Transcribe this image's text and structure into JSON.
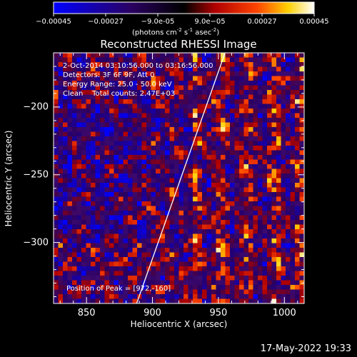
{
  "colorbar": {
    "ticks": [
      "-0.00045",
      "-0.00027",
      "-9.0e-05",
      "9.0e-05",
      "0.00027",
      "0.00045"
    ],
    "range": [
      -0.00045,
      0.00045
    ],
    "unit_prefix": "(photons cm",
    "unit_exp1": "-2",
    "unit_mid1": " s",
    "unit_exp2": "-1",
    "unit_mid2": " asec",
    "unit_exp3": "-2",
    "unit_suffix": ")",
    "colormap": "rhessi-blue-black-red-yellow-white"
  },
  "chart_data": {
    "type": "heatmap",
    "title": "Reconstructed RHESSI Image",
    "xlabel": "Heliocentric X (arcsec)",
    "ylabel": "Heliocentric Y (arcsec)",
    "xlim": [
      825,
      1015
    ],
    "ylim": [
      -345,
      -160
    ],
    "xticks": [
      850,
      900,
      950,
      1000
    ],
    "yticks": [
      -200,
      -250,
      -300
    ],
    "xtick_labels": [
      "850",
      "900",
      "950",
      "1000"
    ],
    "ytick_labels": [
      "−200",
      "−250",
      "−300"
    ],
    "annotations": [
      "2-Oct-2014 03:10:56.000 to 03:16:56.000",
      "Detectors: 3F 6F 9F, Att 0",
      "Energy Range: 25.0 - 50.0 keV",
      "Clean    Total counts: 2.47E+03"
    ],
    "peak_label": "Position of Peak = [972,-160]",
    "peak": [
      972,
      -160
    ],
    "limb": {
      "color": "#ffffff",
      "points": [
        [
          888,
          -345
        ],
        [
          955,
          -160
        ]
      ]
    }
  },
  "footer": {
    "timestamp": "17-May-2022 19:33"
  }
}
